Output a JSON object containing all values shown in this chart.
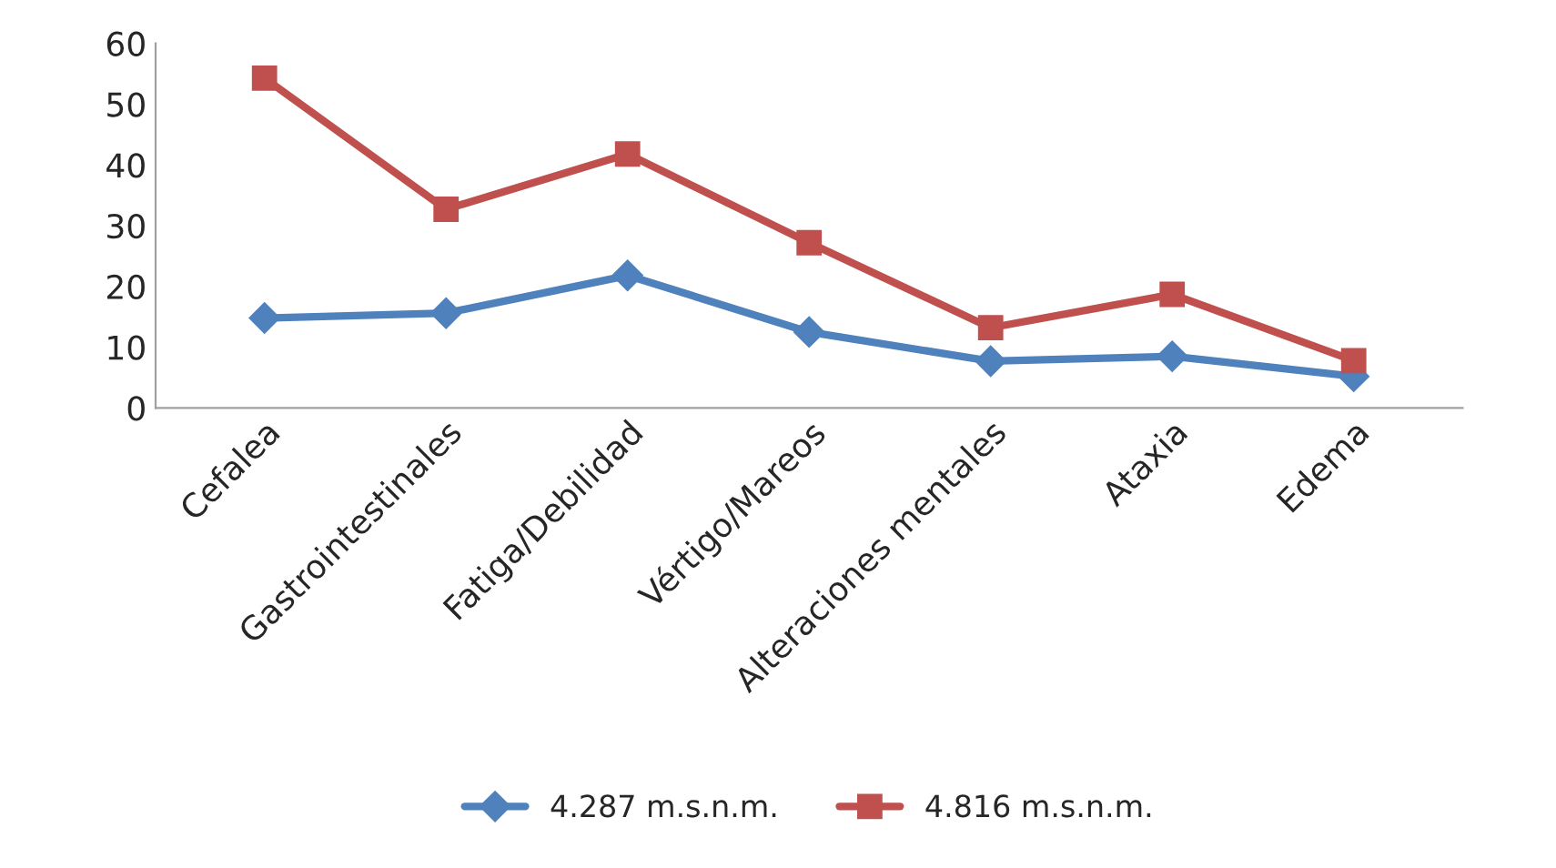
{
  "chart_data": {
    "type": "line",
    "categories": [
      "Cefalea",
      "Gastrointestinales",
      "Fatiga/Debilidad",
      "Vértigo/Mareos",
      "Alteraciones mentales",
      "Ataxia",
      "Edema"
    ],
    "series": [
      {
        "name": "4.287 m.s.n.m.",
        "color": "#4f81bd",
        "marker": "diamond",
        "values": [
          14.8,
          15.6,
          21.8,
          12.5,
          7.7,
          8.5,
          5.2
        ]
      },
      {
        "name": "4.816 m.s.n.m.",
        "color": "#c0504d",
        "marker": "square",
        "values": [
          54.3,
          32.7,
          41.8,
          27.2,
          13.2,
          18.7,
          7.8
        ]
      }
    ],
    "ylim": [
      0,
      60
    ],
    "yticks": [
      0,
      10,
      20,
      30,
      40,
      50,
      60
    ],
    "grid": false,
    "legend": "bottom",
    "line_style": "solid"
  }
}
